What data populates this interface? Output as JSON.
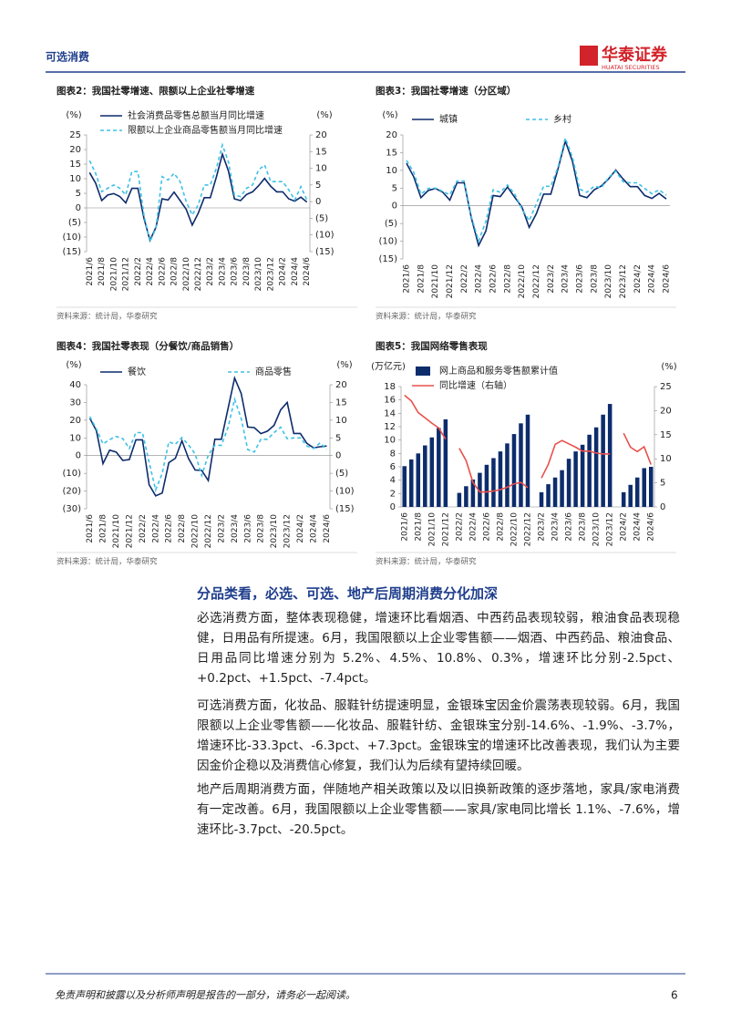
{
  "header": {
    "section": "可选消费",
    "logo_cn": "华泰证券",
    "logo_en": "HUATAI SECURITIES"
  },
  "chart_data": [
    {
      "type": "line",
      "title": "图表2：我国社零增速、限额以上企业社零增速",
      "source": "资料来源：统计局，华泰研究",
      "y_unit": "(%)",
      "y2_unit": "(%)",
      "legend": "top-left",
      "legend_layout": "vertical",
      "grid": false,
      "categories": [
        "2021/6",
        null,
        "2021/8",
        null,
        "2021/10",
        null,
        "2021/12",
        null,
        "2022/2",
        null,
        "2022/4",
        null,
        "2022/6",
        null,
        "2022/8",
        null,
        "2022/10",
        null,
        "2022/12",
        null,
        "2023/2",
        null,
        "2023/4",
        null,
        "2023/6",
        null,
        "2023/8",
        null,
        "2023/10",
        null,
        "2023/12",
        null,
        "2024/2",
        null,
        "2024/4",
        null,
        "2024/6"
      ],
      "ylim": [
        -15,
        25
      ],
      "yticks": [
        25,
        20,
        15,
        10,
        5,
        0,
        {
          "value": -5,
          "label": "(5)"
        },
        {
          "value": -10,
          "label": "(10)"
        },
        {
          "value": -15,
          "label": "(15)"
        }
      ],
      "y2lim": [
        -15,
        20
      ],
      "y2ticks": [
        20,
        15,
        10,
        5,
        0,
        {
          "value": -5,
          "label": "(5)"
        },
        {
          "value": -10,
          "label": "(10)"
        },
        {
          "value": -15,
          "label": "(15)"
        }
      ],
      "series": [
        {
          "name": "社会消费品零售总额当月同比增速",
          "color": "#0d2c6c",
          "dash": false,
          "values": [
            12.1,
            8.5,
            2.5,
            4.4,
            4.9,
            3.9,
            1.7,
            6.7,
            6.7,
            -3.5,
            -11.1,
            -6.7,
            3.1,
            2.7,
            5.4,
            2.5,
            -0.5,
            -5.9,
            -1.8,
            3.5,
            3.5,
            10.6,
            18.4,
            12.7,
            3.1,
            2.5,
            4.6,
            5.5,
            7.6,
            10.1,
            7.4,
            5.5,
            5.5,
            3.1,
            2.3,
            3.7,
            2.0
          ]
        },
        {
          "name": "限额以上企业商品零售额当月同比增速",
          "color": "#3ec1e6",
          "dash": true,
          "axis": "y2",
          "values": [
            12.3,
            8.5,
            3,
            4,
            5,
            4,
            2,
            9,
            9,
            -4,
            -12,
            -8,
            7.5,
            6.5,
            8.5,
            6,
            0,
            -4,
            -1,
            5,
            5,
            10,
            17,
            12,
            2,
            1.5,
            4,
            5,
            9.5,
            11,
            6,
            6,
            6,
            3.5,
            0.5,
            4.5,
            0.5
          ]
        }
      ]
    },
    {
      "type": "line",
      "title": "图表3：我国社零增速（分区域）",
      "source": "资料来源：统计局，华泰研究",
      "y_unit": "(%)",
      "legend": "top",
      "legend_layout": "horizontal",
      "grid": false,
      "categories": [
        "2021/6",
        null,
        "2021/8",
        null,
        "2021/10",
        null,
        "2021/12",
        null,
        "2022/2",
        null,
        "2022/4",
        null,
        "2022/6",
        null,
        "2022/8",
        null,
        "2022/10",
        null,
        "2022/12",
        null,
        "2023/2",
        null,
        "2023/4",
        null,
        "2023/6",
        null,
        "2023/8",
        null,
        "2023/10",
        null,
        "2023/12",
        null,
        "2024/2",
        null,
        "2024/4",
        null,
        "2024/6"
      ],
      "ylim": [
        -15,
        20
      ],
      "yticks": [
        20,
        15,
        10,
        5,
        0,
        {
          "value": -5,
          "label": "(5)"
        },
        {
          "value": -10,
          "label": "(10)"
        },
        {
          "value": -15,
          "label": "(15)"
        }
      ],
      "series": [
        {
          "name": "城镇",
          "color": "#0d2c6c",
          "dash": false,
          "values": [
            12,
            8.2,
            2.3,
            4.3,
            4.9,
            3.9,
            1.6,
            6.5,
            6.5,
            -3.5,
            -11.2,
            -7.1,
            2.9,
            2.6,
            5.3,
            2.4,
            -0.4,
            -6.1,
            -2.2,
            3.3,
            3.3,
            10.5,
            18.3,
            12.5,
            2.9,
            2.3,
            4.5,
            5.6,
            7.6,
            10.1,
            7.6,
            5.4,
            5.4,
            2.9,
            2.1,
            3.5,
            1.9
          ]
        },
        {
          "name": "乡村",
          "color": "#3ec1e6",
          "dash": true,
          "values": [
            12.8,
            9.5,
            3.3,
            4.9,
            5.0,
            4.1,
            3.1,
            7.0,
            7.0,
            -3.1,
            -9.9,
            -4.4,
            4.5,
            3.8,
            5.9,
            3.3,
            -0.9,
            -4.2,
            0.6,
            5.5,
            5.5,
            11.0,
            19.1,
            13.7,
            4.7,
            3.8,
            5.5,
            5.1,
            8.0,
            9.8,
            6.8,
            6.5,
            6.5,
            4.9,
            3.4,
            4.5,
            3.0
          ]
        }
      ]
    },
    {
      "type": "line",
      "title": "图表4：我国社零表现（分餐饮/商品销售）",
      "source": "资料来源：统计局，华泰研究",
      "y_unit": "(%)",
      "y2_unit": "(%)",
      "legend": "top",
      "legend_layout": "horizontal",
      "grid": false,
      "categories": [
        "2021/6",
        null,
        "2021/8",
        null,
        "2021/10",
        null,
        "2021/12",
        null,
        "2022/2",
        null,
        "2022/4",
        null,
        "2022/6",
        null,
        "2022/8",
        null,
        "2022/10",
        null,
        "2022/12",
        null,
        "2023/2",
        null,
        "2023/4",
        null,
        "2023/6",
        null,
        "2023/8",
        null,
        "2023/10",
        null,
        "2023/12",
        null,
        "2024/2",
        null,
        "2024/4",
        null,
        "2024/6"
      ],
      "ylim": [
        -30,
        40
      ],
      "yticks": [
        40,
        30,
        20,
        10,
        0,
        {
          "value": -10,
          "label": "(10)"
        },
        {
          "value": -20,
          "label": "(20)"
        },
        {
          "value": -30,
          "label": "(30)"
        }
      ],
      "y2lim": [
        -15,
        20
      ],
      "y2ticks": [
        20,
        15,
        10,
        5,
        0,
        {
          "value": -5,
          "label": "(5)"
        },
        {
          "value": -10,
          "label": "(10)"
        },
        {
          "value": -15,
          "label": "(15)"
        }
      ],
      "series": [
        {
          "name": "餐饮",
          "color": "#0d2c6c",
          "dash": false,
          "values": [
            21,
            14,
            -4.5,
            3.1,
            2,
            -2.7,
            -2.2,
            8.9,
            8.9,
            -16.4,
            -22.7,
            -21.1,
            -4,
            -1.5,
            8.4,
            -1.7,
            -8.1,
            -8.4,
            -14.1,
            9.2,
            9.2,
            26.3,
            43.8,
            35.1,
            16.1,
            15.8,
            12.4,
            13.8,
            17.1,
            25.8,
            30,
            12.5,
            12.5,
            6.9,
            4.4,
            5,
            5.4
          ]
        },
        {
          "name": "商品零售",
          "color": "#3ec1e6",
          "dash": true,
          "axis": "y2",
          "values": [
            11,
            7.5,
            3.3,
            4.5,
            5.4,
            4.8,
            2,
            6.5,
            6.5,
            -1.9,
            -9.7,
            -5,
            3.9,
            3.2,
            5.1,
            3,
            0.5,
            -5.6,
            0.1,
            2.9,
            2.9,
            7.9,
            15.9,
            10.5,
            1.7,
            1,
            4.6,
            4.6,
            6.5,
            8,
            4.8,
            5,
            5,
            2.7,
            2,
            3.6,
            1.7
          ]
        }
      ]
    },
    {
      "type": "bar",
      "title": "图表5：我国网络零售表现",
      "source": "资料来源：统计局，华泰研究",
      "y_unit": "(万亿元)",
      "y2_unit": "(%)",
      "legend": "top-left",
      "legend_layout": "vertical",
      "grid": false,
      "categories": [
        "2021/6",
        null,
        "2021/8",
        null,
        "2021/10",
        null,
        "2021/12",
        null,
        "2022/2",
        null,
        "2022/4",
        null,
        "2022/6",
        null,
        "2022/8",
        null,
        "2022/10",
        null,
        "2022/12",
        null,
        "2023/2",
        null,
        "2023/4",
        null,
        "2023/6",
        null,
        "2023/8",
        null,
        "2023/10",
        null,
        "2023/12",
        null,
        "2024/2",
        null,
        "2024/4",
        null,
        "2024/6"
      ],
      "ylim": [
        0,
        18
      ],
      "yticks": [
        0,
        2,
        4,
        6,
        8,
        10,
        12,
        14,
        16,
        18
      ],
      "y2lim": [
        0,
        25
      ],
      "y2ticks": [
        0,
        5,
        10,
        15,
        20,
        25
      ],
      "series": [
        {
          "name": "网上商品和服务零售额累计值",
          "color": "#0d2c6c",
          "values": [
            6.1,
            7.1,
            8.0,
            9.2,
            10.4,
            11.8,
            13.1,
            null,
            2.1,
            3.1,
            4.1,
            5.1,
            6.3,
            7.3,
            8.3,
            9.5,
            10.9,
            12.5,
            13.8,
            null,
            2.2,
            3.4,
            4.4,
            5.5,
            7.2,
            8.3,
            9.3,
            10.8,
            11.9,
            13.8,
            15.4,
            null,
            2.2,
            3.3,
            4.4,
            5.8,
            6.0
          ]
        },
        {
          "name": "同比增速（右轴）",
          "color": "#e8504b",
          "type": "line",
          "axis": "y2",
          "values": [
            23.2,
            22,
            19.6,
            18.5,
            17.4,
            16.4,
            14.1,
            null,
            12.2,
            9.6,
            5.1,
            3.1,
            3.1,
            3.3,
            3.6,
            4.1,
            4.8,
            5.1,
            4.0,
            null,
            6.0,
            8.8,
            13.0,
            13.8,
            13.1,
            12.4,
            11.6,
            11.6,
            11.2,
            11.0,
            11.0,
            null,
            15.3,
            12.4,
            11.5,
            12.5,
            8.8
          ]
        }
      ]
    }
  ],
  "body": {
    "heading": "分品类看，必选、可选、地产后周期消费分化加深",
    "paragraphs": [
      "必选消费方面，整体表现稳健，增速环比看烟酒、中西药品表现较弱，粮油食品表现稳健，日用品有所提速。6月，我国限额以上企业零售额——烟酒、中西药品、粮油食品、日用品同比增速分别为 5.2%、4.5%、10.8%、0.3%，增速环比分别-2.5pct、+0.2pct、+1.5pct、-7.4pct。",
      "可选消费方面，化妆品、服鞋针纺提速明显，金银珠宝因金价震荡表现较弱。6月，我国限额以上企业零售额——化妆品、服鞋针纺、金银珠宝分别-14.6%、-1.9%、-3.7%，增速环比-33.3pct、-6.3pct、+7.3pct。金银珠宝的增速环比改善表现，我们认为主要因金价企稳以及消费信心修复，我们认为后续有望持续回暖。",
      "地产后周期消费方面，伴随地产相关政策以及以旧换新政策的逐步落地，家具/家电消费有一定改善。6月，我国限额以上企业零售额——家具/家电同比增长 1.1%、-7.6%，增速环比-3.7pct、-20.5pct。"
    ]
  },
  "footer": {
    "disclaimer": "免责声明和披露以及分析师声明是报告的一部分，请务必一起阅读。",
    "page": 6
  }
}
